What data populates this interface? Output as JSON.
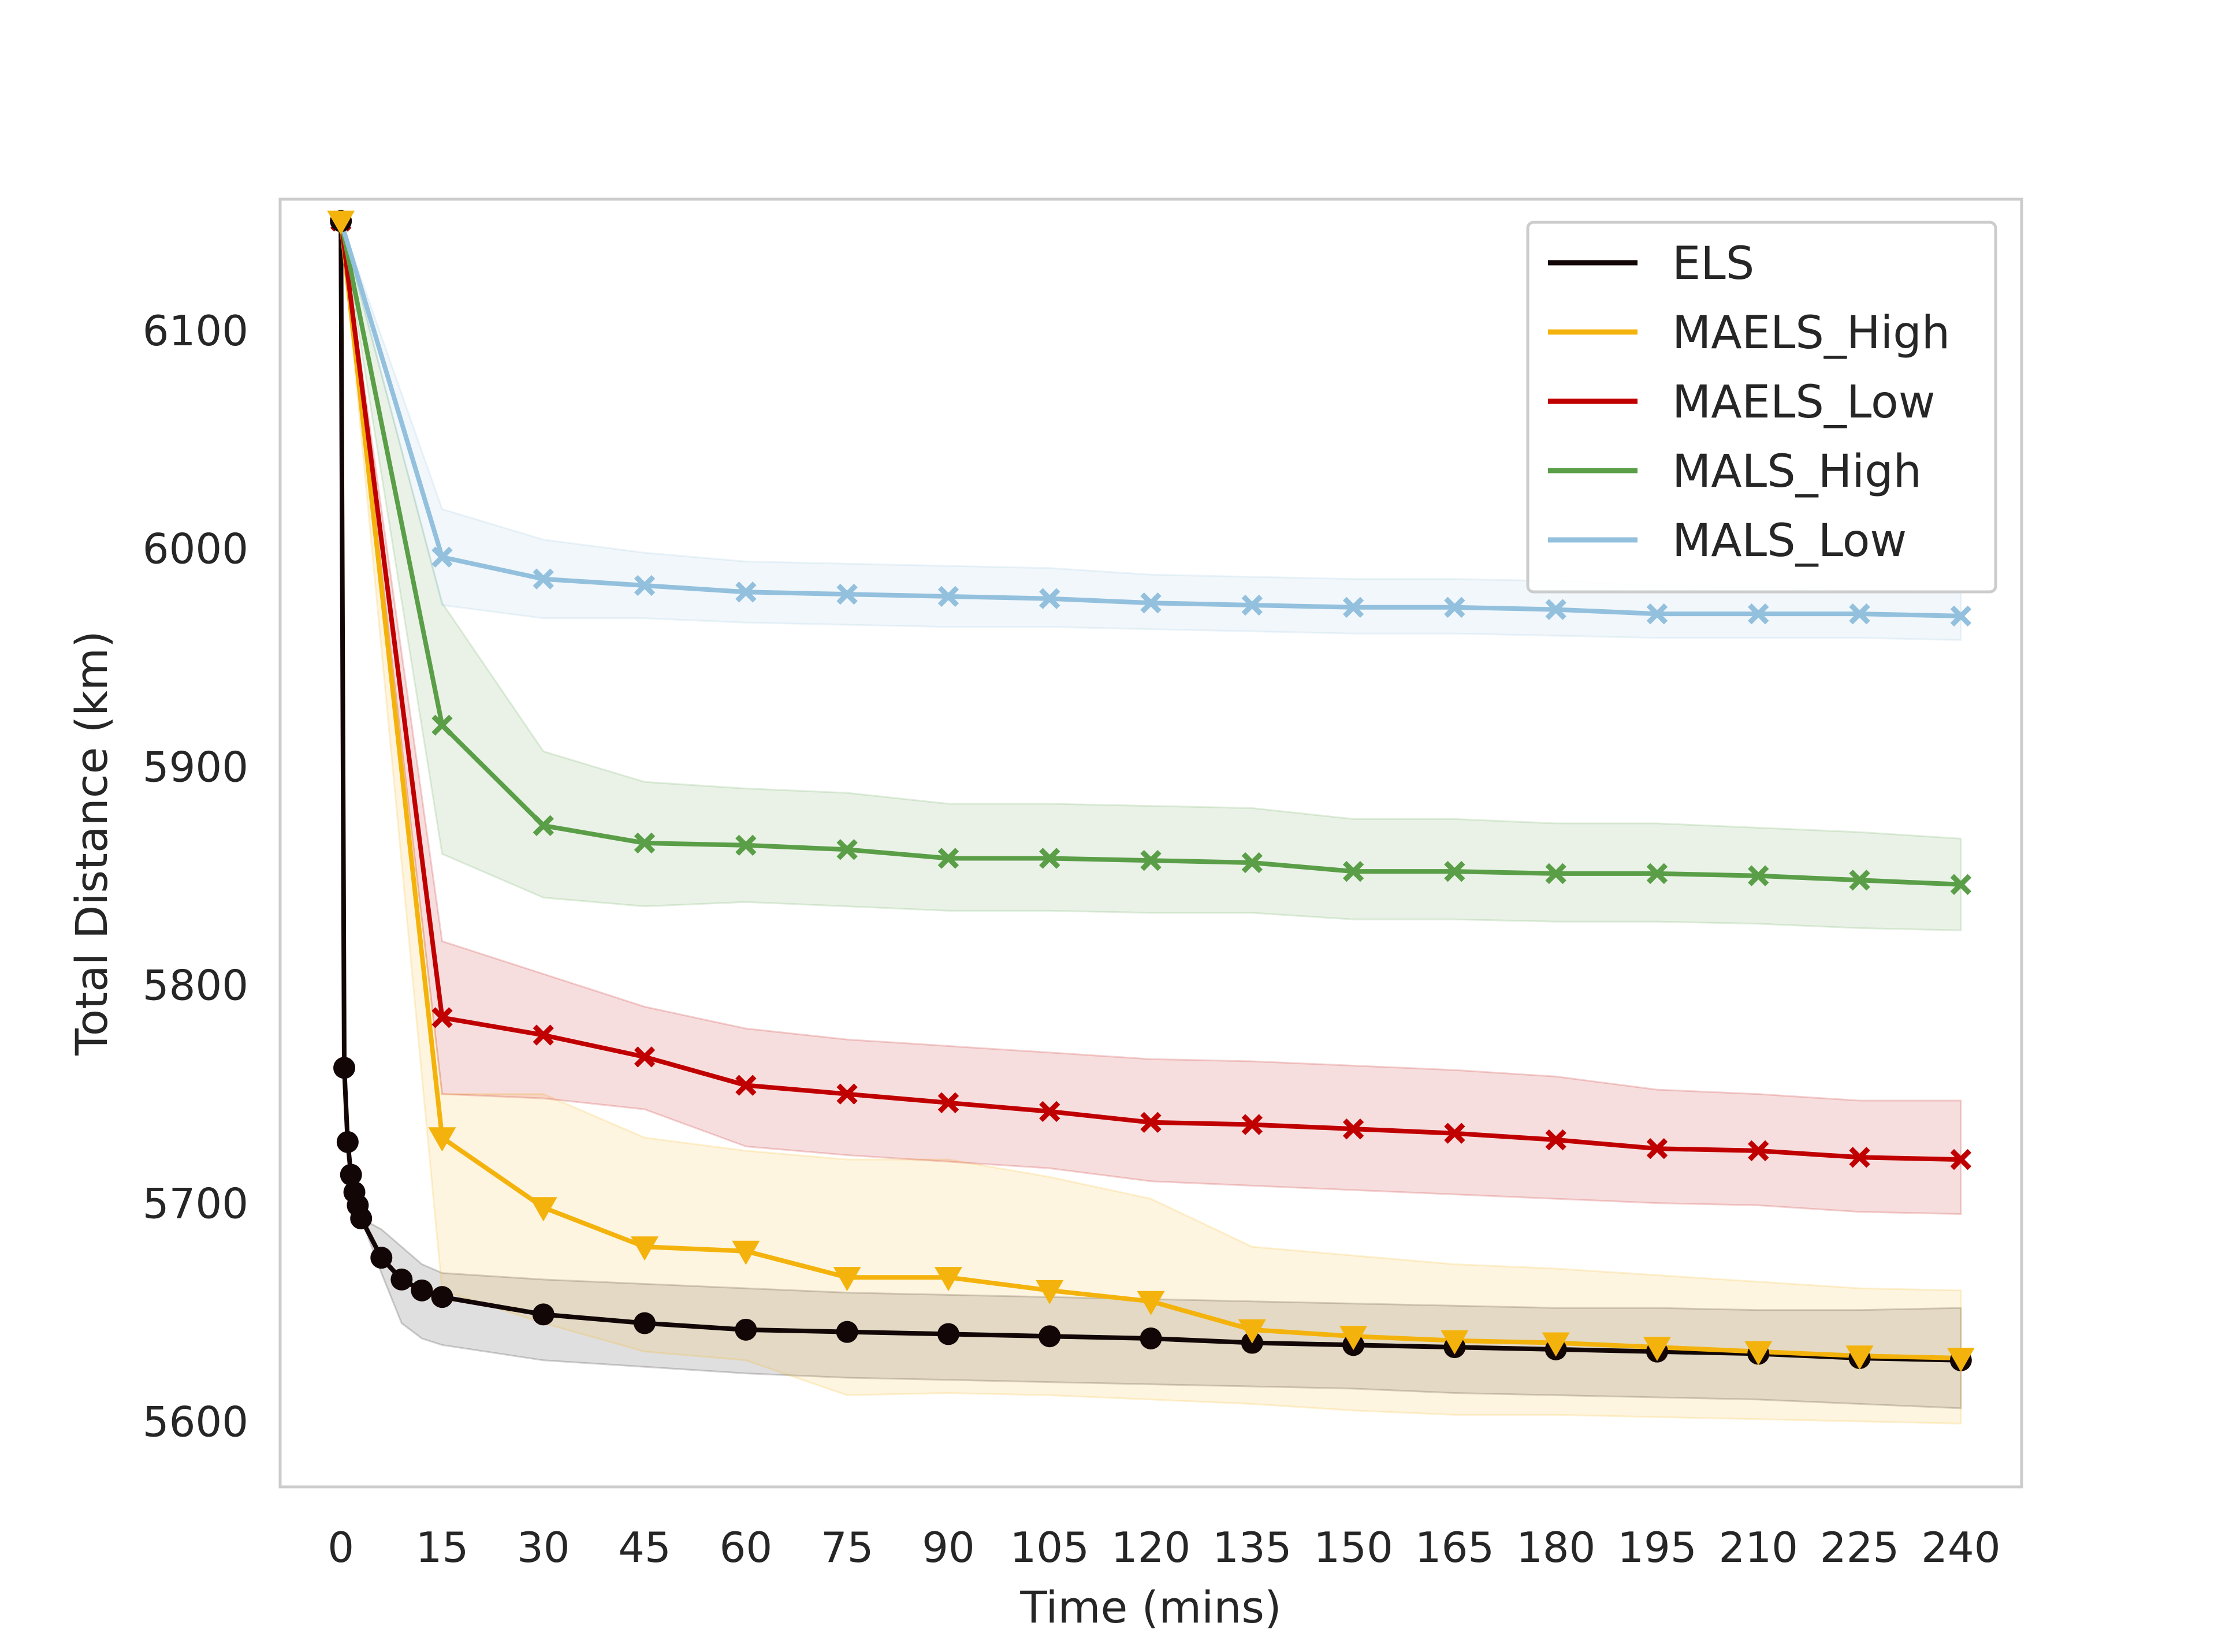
{
  "chart_data": {
    "type": "line",
    "title": "",
    "xlabel": "Time (mins)",
    "ylabel": "Total Distance (km)",
    "xlim": [
      -9,
      249
    ],
    "ylim": [
      5570,
      6160
    ],
    "xticks": [
      0,
      15,
      30,
      45,
      60,
      75,
      90,
      105,
      120,
      135,
      150,
      165,
      180,
      195,
      210,
      225,
      240
    ],
    "yticks": [
      5600,
      5700,
      5800,
      5900,
      6000,
      6100
    ],
    "grid": false,
    "legend": "top-right",
    "series": [
      {
        "name": "ELS",
        "color": "#120606",
        "marker": "circle",
        "x": [
          0,
          0.5,
          1,
          1.5,
          2,
          2.5,
          3,
          6,
          9,
          12,
          15,
          30,
          45,
          60,
          75,
          90,
          105,
          120,
          135,
          150,
          165,
          180,
          195,
          210,
          225,
          240
        ],
        "y": [
          6150,
          5762,
          5728,
          5713,
          5705,
          5699,
          5693,
          5675,
          5665,
          5660,
          5657,
          5649,
          5645,
          5642,
          5641,
          5640,
          5639,
          5638,
          5636,
          5635,
          5634,
          5633,
          5632,
          5631,
          5629,
          5628
        ],
        "lower": [
          6150,
          5762,
          5728,
          5713,
          5705,
          5699,
          5693,
          5668,
          5645,
          5638,
          5635,
          5628,
          5625,
          5622,
          5620,
          5619,
          5618,
          5617,
          5616,
          5615,
          5613,
          5612,
          5611,
          5610,
          5608,
          5606
        ],
        "upper": [
          6150,
          5762,
          5728,
          5713,
          5705,
          5699,
          5693,
          5688,
          5680,
          5672,
          5668,
          5665,
          5663,
          5661,
          5659,
          5658,
          5657,
          5656,
          5655,
          5654,
          5653,
          5652,
          5652,
          5651,
          5651,
          5652
        ]
      },
      {
        "name": "MAELS_High",
        "color": "#f4b30c",
        "marker": "triangle-down",
        "x": [
          0,
          15,
          30,
          45,
          60,
          75,
          90,
          105,
          120,
          135,
          150,
          165,
          180,
          195,
          210,
          225,
          240
        ],
        "y": [
          6150,
          5730,
          5698,
          5680,
          5678,
          5666,
          5666,
          5660,
          5655,
          5642,
          5639,
          5637,
          5636,
          5634,
          5632,
          5630,
          5629
        ],
        "lower": [
          6150,
          5660,
          5645,
          5632,
          5628,
          5612,
          5613,
          5612,
          5610,
          5608,
          5605,
          5603,
          5603,
          5602,
          5601,
          5600,
          5599
        ],
        "upper": [
          6150,
          5750,
          5750,
          5730,
          5724,
          5720,
          5720,
          5712,
          5702,
          5680,
          5676,
          5672,
          5670,
          5667,
          5664,
          5661,
          5660
        ]
      },
      {
        "name": "MAELS_Low",
        "color": "#c00000",
        "marker": "x",
        "x": [
          0,
          15,
          30,
          45,
          60,
          75,
          90,
          105,
          120,
          135,
          150,
          165,
          180,
          195,
          210,
          225,
          240
        ],
        "y": [
          6150,
          5785,
          5777,
          5767,
          5754,
          5750,
          5746,
          5742,
          5737,
          5736,
          5734,
          5732,
          5729,
          5725,
          5724,
          5721,
          5720
        ],
        "lower": [
          6150,
          5750,
          5748,
          5743,
          5726,
          5722,
          5719,
          5716,
          5710,
          5708,
          5706,
          5704,
          5702,
          5700,
          5699,
          5696,
          5695
        ],
        "upper": [
          6150,
          5820,
          5805,
          5790,
          5780,
          5775,
          5772,
          5769,
          5766,
          5765,
          5763,
          5761,
          5758,
          5752,
          5750,
          5747,
          5747
        ]
      },
      {
        "name": "MALS_High",
        "color": "#5a9e48",
        "marker": "x",
        "x": [
          0,
          15,
          30,
          45,
          60,
          75,
          90,
          105,
          120,
          135,
          150,
          165,
          180,
          195,
          210,
          225,
          240
        ],
        "y": [
          6150,
          5919,
          5873,
          5865,
          5864,
          5862,
          5858,
          5858,
          5857,
          5856,
          5852,
          5852,
          5851,
          5851,
          5850,
          5848,
          5846
        ],
        "lower": [
          6150,
          5860,
          5840,
          5836,
          5838,
          5836,
          5834,
          5834,
          5833,
          5833,
          5830,
          5830,
          5829,
          5829,
          5828,
          5826,
          5825
        ],
        "upper": [
          6150,
          5975,
          5907,
          5893,
          5890,
          5888,
          5883,
          5883,
          5882,
          5881,
          5876,
          5876,
          5874,
          5874,
          5872,
          5870,
          5867
        ]
      },
      {
        "name": "MALS_Low",
        "color": "#93c0dd",
        "marker": "x",
        "x": [
          0,
          15,
          30,
          45,
          60,
          75,
          90,
          105,
          120,
          135,
          150,
          165,
          180,
          195,
          210,
          225,
          240
        ],
        "y": [
          6150,
          5996,
          5986,
          5983,
          5980,
          5979,
          5978,
          5977,
          5975,
          5974,
          5973,
          5973,
          5972,
          5970,
          5970,
          5970,
          5969
        ],
        "lower": [
          6150,
          5974,
          5968,
          5968,
          5966,
          5965,
          5964,
          5964,
          5963,
          5962,
          5961,
          5961,
          5960,
          5959,
          5959,
          5959,
          5958
        ],
        "upper": [
          6150,
          6018,
          6004,
          5998,
          5994,
          5993,
          5992,
          5991,
          5988,
          5987,
          5986,
          5986,
          5985,
          5983,
          5982,
          5981,
          5980
        ]
      }
    ]
  }
}
